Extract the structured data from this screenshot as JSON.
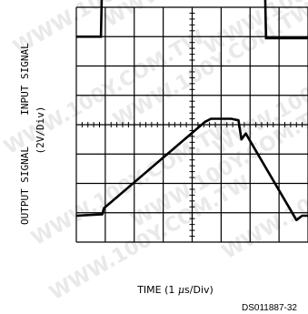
{
  "chart_data": {
    "type": "line",
    "title": "",
    "grid": true,
    "grid_divisions": {
      "x": 8,
      "y": 8
    },
    "xlabel": "TIME (1 µs/Div)",
    "xlabel_parts": {
      "prefix": "TIME (1 ",
      "unit_symbol": "µ",
      "suffix": "s/Div)"
    },
    "ylabels": {
      "input_side": "INPUT SIGNAL",
      "scale": "(2V/Div)",
      "output_side": "OUTPUT SIGNAL"
    },
    "figure_code": "DS011887-32",
    "watermark": "WWW.100Y.COM.TW",
    "series": [
      {
        "name": "INPUT SIGNAL",
        "units": "div",
        "x": [
          0,
          0.85,
          0.9,
          6.5,
          6.55,
          8
        ],
        "y": [
          7.0,
          7.0,
          9.4,
          9.4,
          6.95,
          6.95
        ]
      },
      {
        "name": "OUTPUT SIGNAL",
        "units": "div",
        "x": [
          0,
          0.9,
          0.95,
          4.45,
          4.65,
          5.35,
          5.6,
          5.7,
          5.85,
          7.6,
          7.8,
          8
        ],
        "y": [
          0.9,
          0.95,
          1.15,
          4.1,
          4.2,
          4.2,
          4.15,
          3.5,
          3.7,
          0.75,
          0.9,
          0.9
        ]
      }
    ]
  }
}
